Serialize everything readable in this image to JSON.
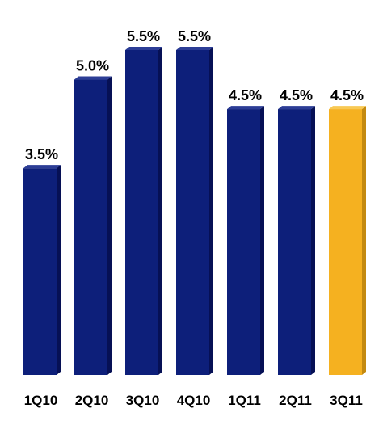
{
  "chart_data": {
    "type": "bar",
    "categories": [
      "1Q10",
      "2Q10",
      "3Q10",
      "4Q10",
      "1Q11",
      "2Q11",
      "3Q11"
    ],
    "values": [
      3.5,
      5.0,
      5.5,
      5.5,
      4.5,
      4.5,
      4.5
    ],
    "data_labels": [
      "3.5%",
      "5.0%",
      "5.5%",
      "5.5%",
      "4.5%",
      "4.5%",
      "4.5%"
    ],
    "unit": "%",
    "ylim": [
      0,
      5.5
    ],
    "grid": false,
    "legend": "none",
    "colors": {
      "default_bar": "#0d1f7a",
      "default_bar_side": "#061055",
      "default_bar_top": "#2c3d96",
      "highlight_bar": "#f5b120",
      "highlight_bar_side": "#c48a10",
      "highlight_bar_top": "#f8c955"
    },
    "highlight_category": "3Q11"
  }
}
